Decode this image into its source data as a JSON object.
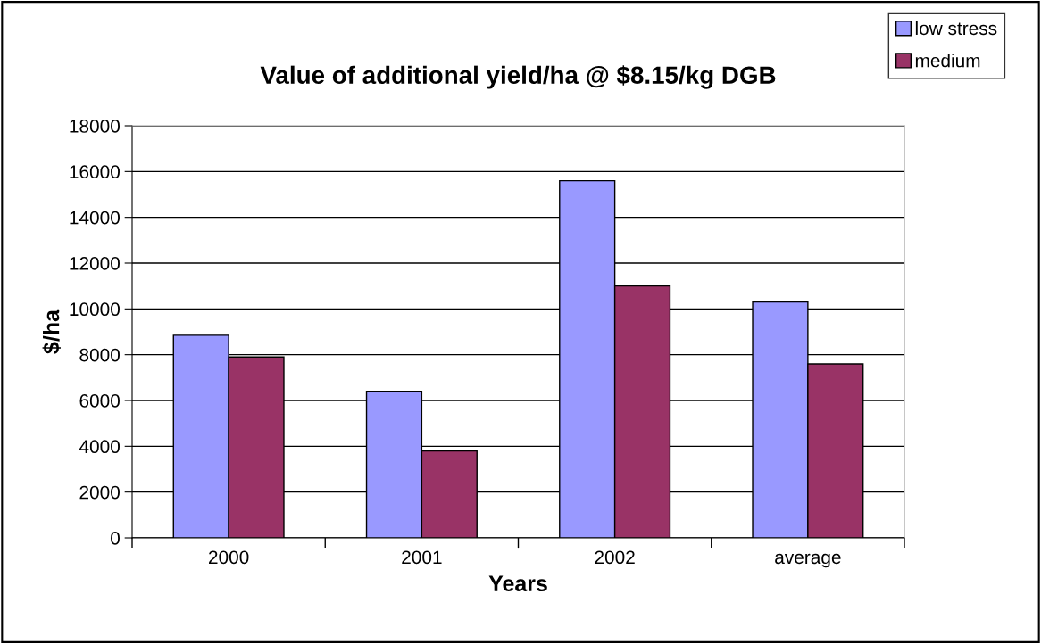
{
  "chart_data": {
    "type": "bar",
    "title": "Value of additional yield/ha @ $8.15/kg DGB",
    "xlabel": "Years",
    "ylabel": "$/ha",
    "categories": [
      "2000",
      "2001",
      "2002",
      "average"
    ],
    "series": [
      {
        "name": "low stress",
        "color": "#9999ff",
        "values": [
          8850,
          6400,
          15600,
          10300
        ]
      },
      {
        "name": "medium",
        "color": "#993366",
        "values": [
          7900,
          3800,
          11000,
          7600
        ]
      }
    ],
    "ylim": [
      0,
      18000
    ],
    "yticks": [
      0,
      2000,
      4000,
      6000,
      8000,
      10000,
      12000,
      14000,
      16000,
      18000
    ],
    "grid": "y",
    "legend": "top right"
  }
}
